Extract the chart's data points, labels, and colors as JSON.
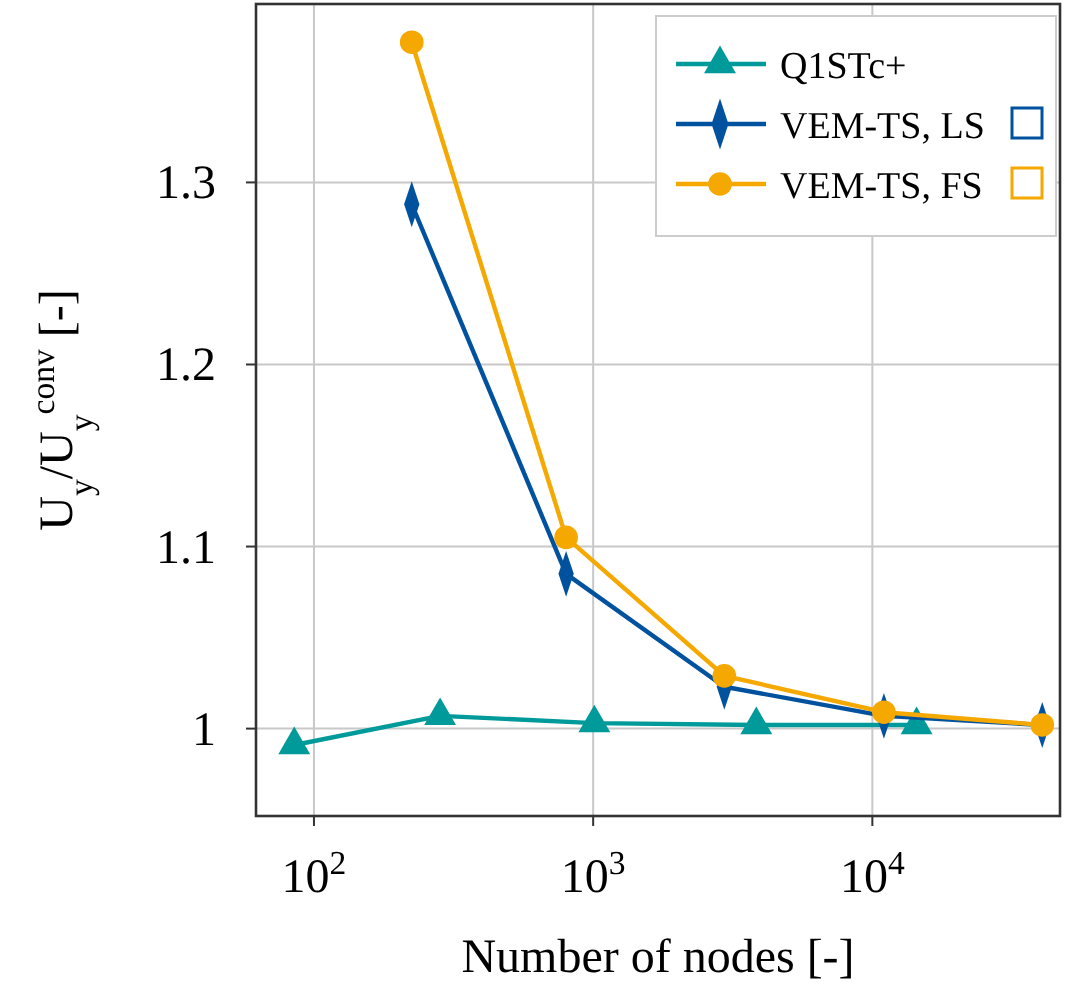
{
  "chart_data": {
    "type": "line",
    "xlabel": "Number of nodes [-]",
    "ylabel": "U$_{y}$/U$_{y}$$^{conv}$ [-]",
    "log": "x",
    "grid": true,
    "legend": "top right",
    "line_style": "solid",
    "xlim": [
      62,
      47000
    ],
    "ylim": [
      0.952,
      1.398
    ],
    "xticks": [
      {
        "value": 100,
        "label": "10$^{2}$"
      },
      {
        "value": 1000,
        "label": "10$^{3}$"
      },
      {
        "value": 10000,
        "label": "10$^{4}$"
      }
    ],
    "yticks": [
      1,
      1.1,
      1.2,
      1.3
    ],
    "series": [
      {
        "name": "Q1STc+",
        "color": "#009a9a",
        "marker": "triangle",
        "x": [
          85,
          283,
          1010,
          3840,
          14400
        ],
        "values": [
          0.991,
          1.007,
          1.003,
          1.002,
          1.002
        ]
      },
      {
        "name": "VEM-TS, LS",
        "color": "#00529f",
        "marker": "diamond",
        "x": [
          224,
          800,
          2950,
          11000,
          40600
        ],
        "values": [
          1.288,
          1.085,
          1.023,
          1.007,
          1.002
        ]
      },
      {
        "name": "VEM-TS, FS",
        "color": "#f5a800",
        "marker": "circle",
        "x": [
          224,
          800,
          2950,
          11000,
          40600
        ],
        "values": [
          1.377,
          1.105,
          1.029,
          1.009,
          1.002
        ]
      }
    ]
  }
}
